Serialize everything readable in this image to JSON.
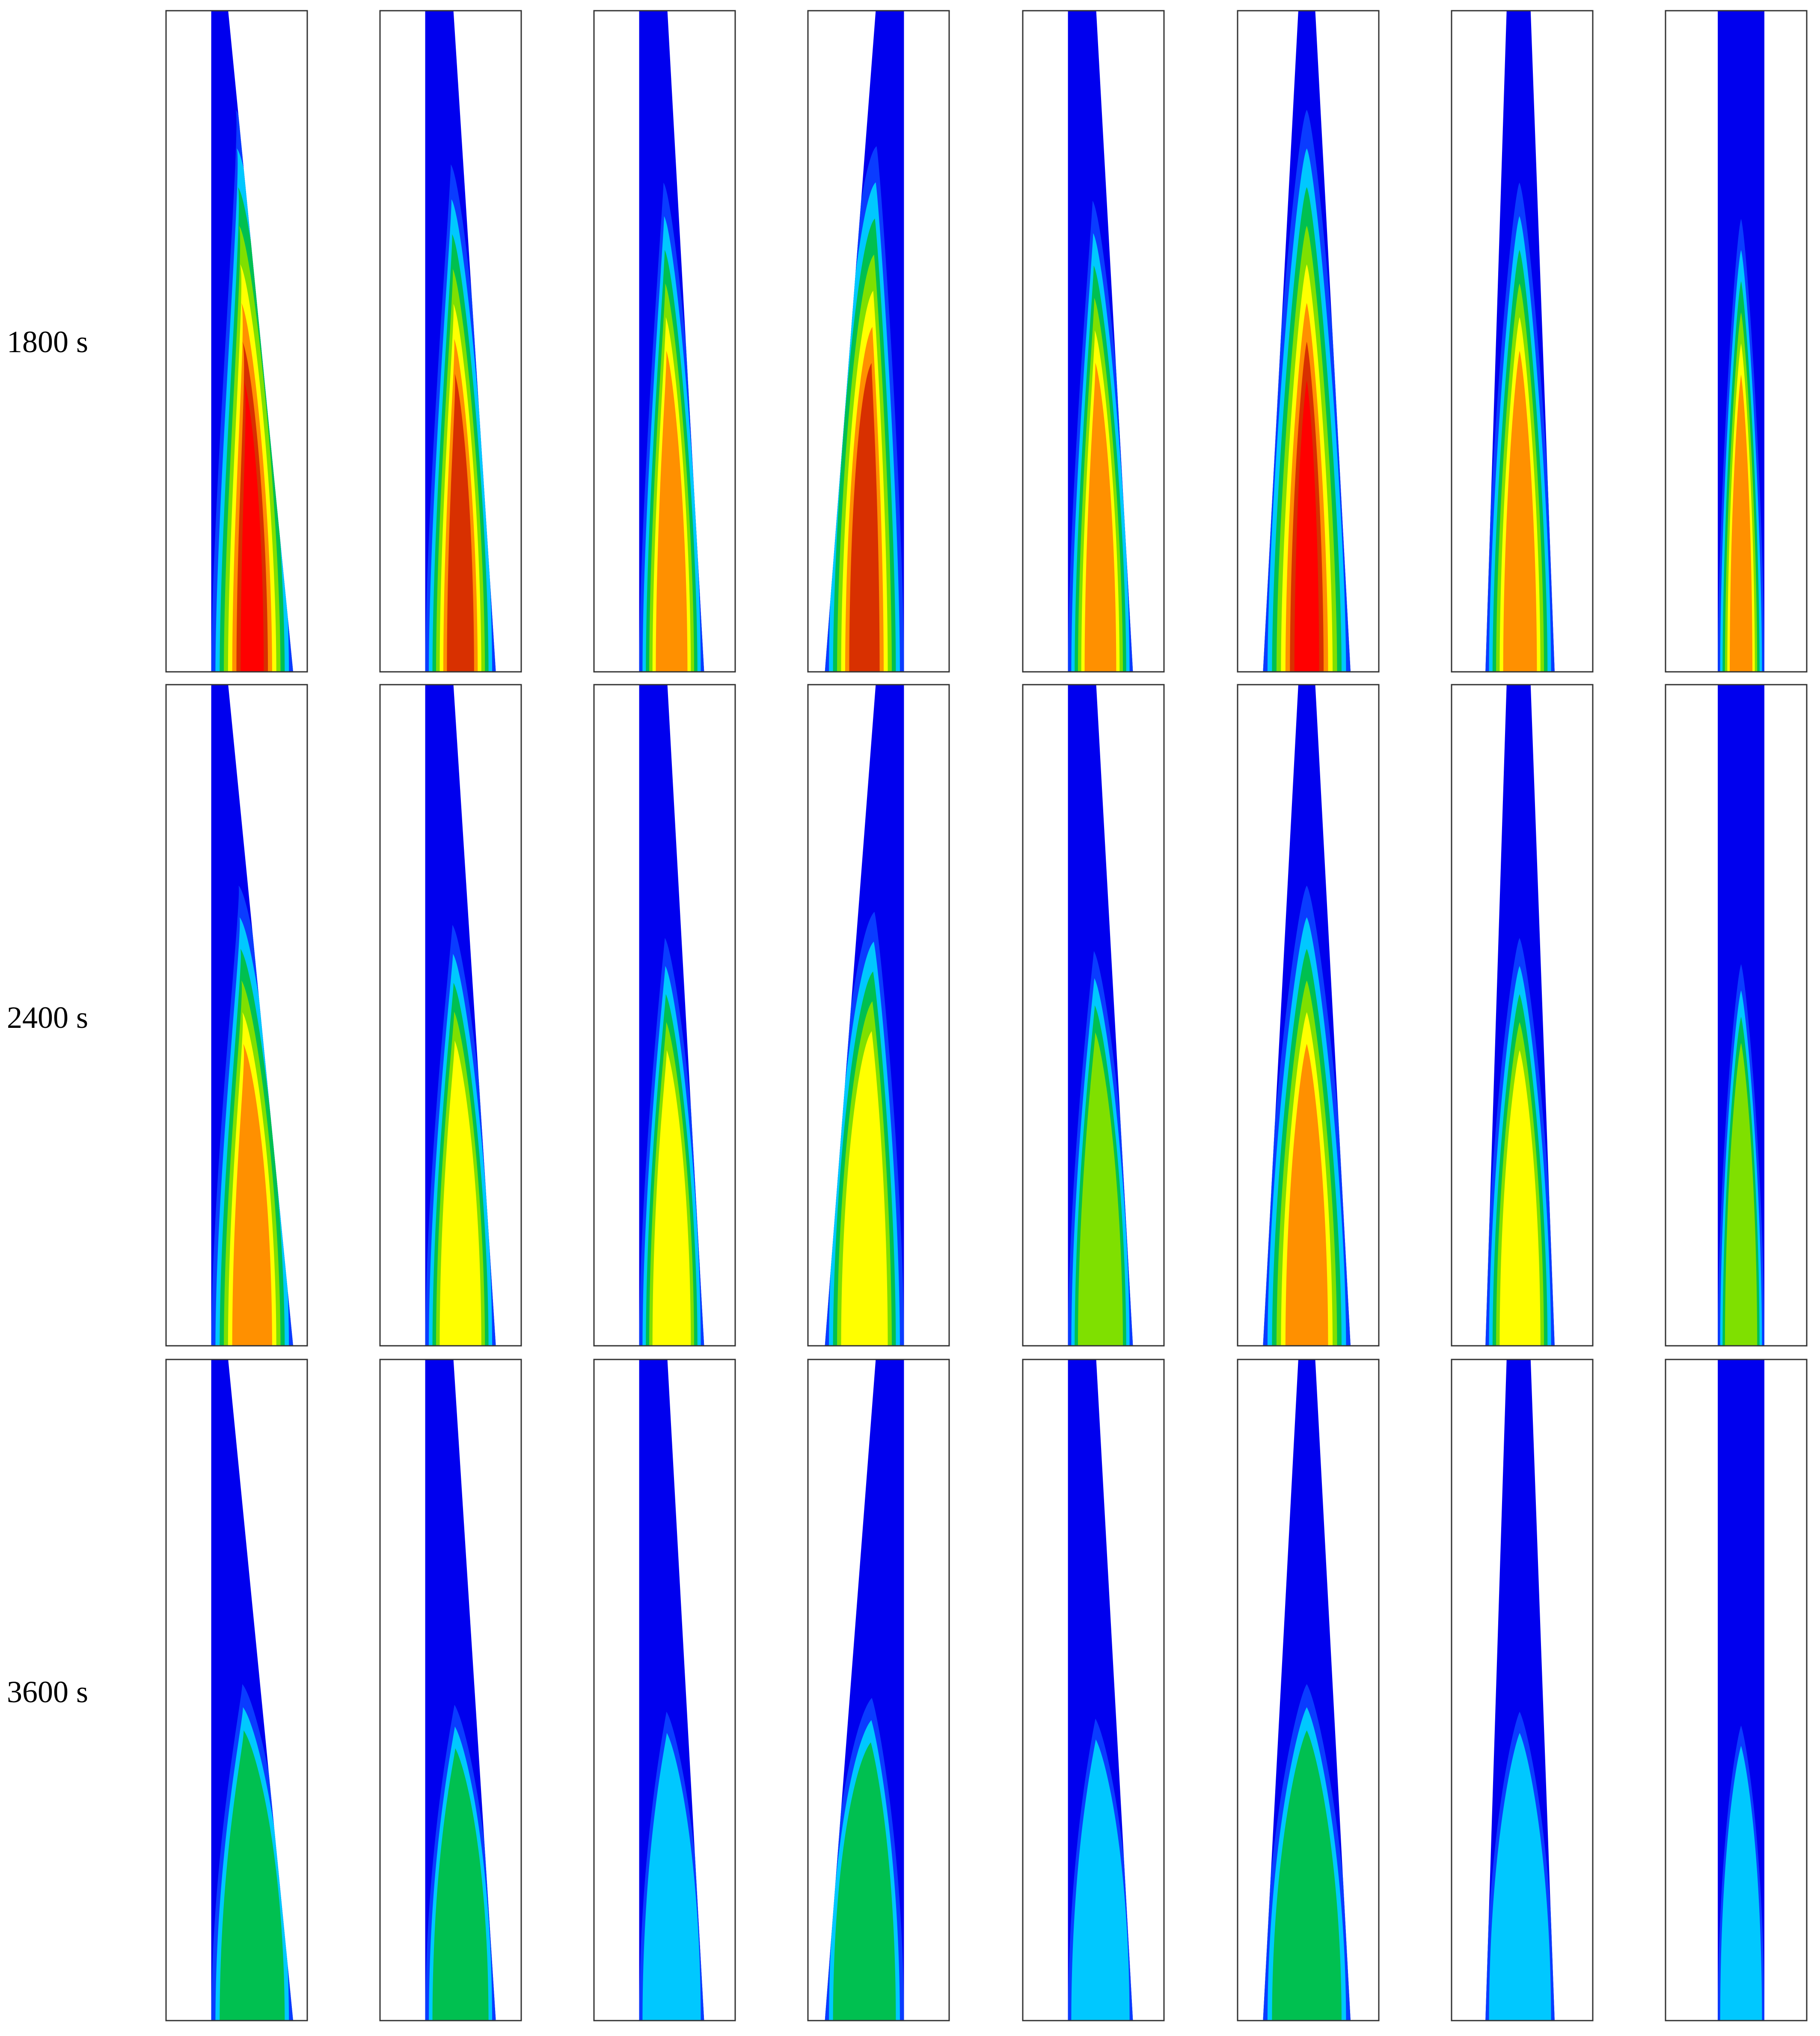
{
  "rows": [
    {
      "label": "1800 s",
      "intensity": 1.0
    },
    {
      "label": "2400 s",
      "intensity": 0.72
    },
    {
      "label": "3600 s",
      "intensity": 0.38
    }
  ],
  "columns": [
    {
      "shape": "right-taper",
      "fill": 1.0
    },
    {
      "shape": "right-taper-slight",
      "fill": 0.85
    },
    {
      "shape": "straight",
      "fill": 0.8
    },
    {
      "shape": "left-taper",
      "fill": 0.9
    },
    {
      "shape": "straight",
      "fill": 0.75
    },
    {
      "shape": "symmetric-taper",
      "fill": 1.0
    },
    {
      "shape": "symmetric-taper-slight",
      "fill": 0.8
    },
    {
      "shape": "straight-narrow",
      "fill": 0.7
    }
  ],
  "colors": {
    "background": "#0000ee",
    "levels": [
      "#0000ee",
      "#0a3cff",
      "#00c8ff",
      "#00c050",
      "#7fe000",
      "#ffff00",
      "#ff9000",
      "#d83000",
      "#ff0000"
    ]
  }
}
